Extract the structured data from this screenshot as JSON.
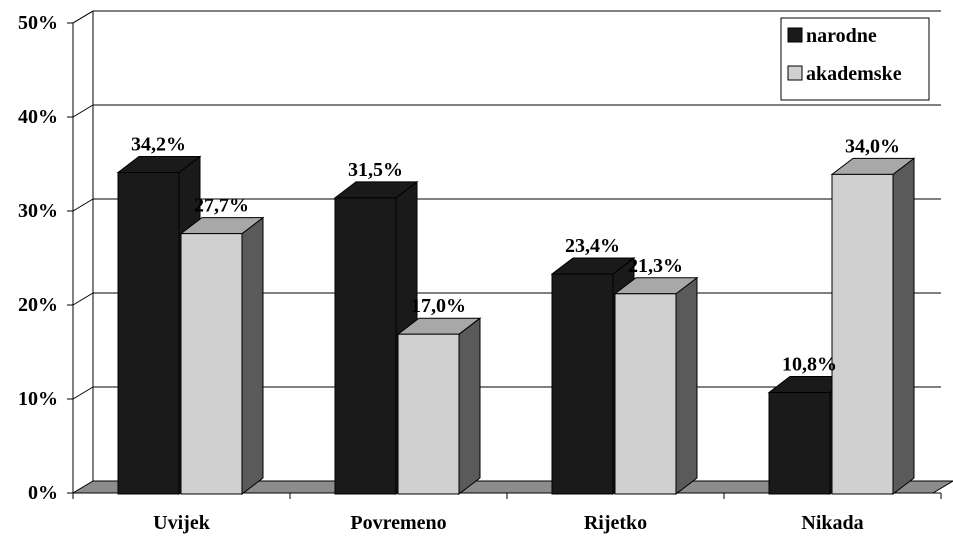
{
  "chart_data": {
    "type": "bar",
    "style": "3d-clustered-column",
    "categories": [
      "Uvijek",
      "Povremeno",
      "Rijetko",
      "Nikada"
    ],
    "series": [
      {
        "name": "narodne",
        "values": [
          34.2,
          31.5,
          23.4,
          10.8
        ],
        "labels": [
          "34,2%",
          "31,5%",
          "23,4%",
          "10,8%"
        ],
        "color": "#1a1a1a"
      },
      {
        "name": "akademske",
        "values": [
          27.7,
          17.0,
          21.3,
          34.0
        ],
        "labels": [
          "27,7%",
          "17,0%",
          "21,3%",
          "34,0%"
        ],
        "color": "#d0d0d0"
      }
    ],
    "y_ticks": [
      "0%",
      "10%",
      "20%",
      "30%",
      "40%",
      "50%"
    ],
    "ylim": [
      0,
      50
    ],
    "grid": true,
    "legend_position": "top-right"
  },
  "colors": {
    "series_dark": "#1a1a1a",
    "series_light": "#d0d0d0",
    "floor": "#8c8c8c",
    "axis": "#000000"
  }
}
